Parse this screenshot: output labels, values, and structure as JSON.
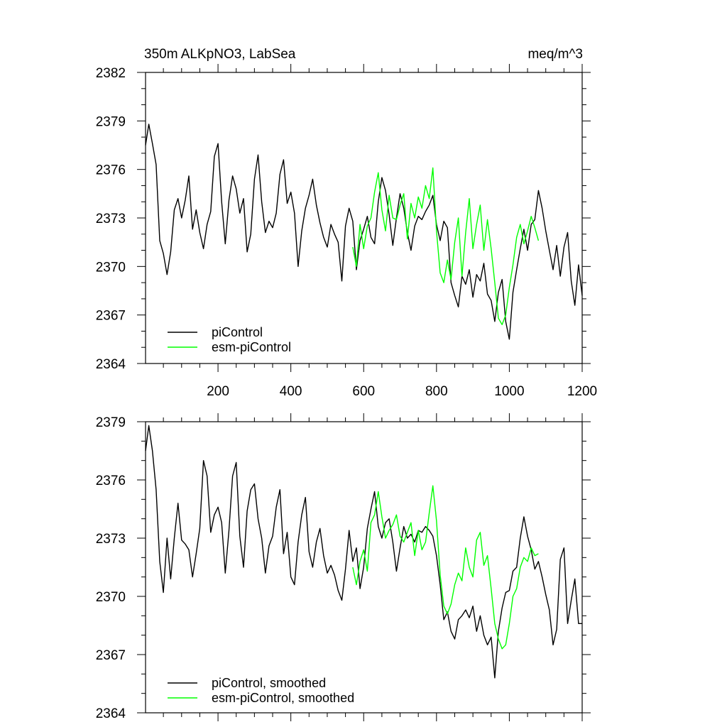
{
  "chart_data": [
    {
      "type": "line",
      "panel": "top",
      "title_left": "350m ALKpNO3, LabSea",
      "title_right": "meq/m^3",
      "xlabel": "",
      "ylabel": "",
      "xlim": [
        1,
        1200
      ],
      "ylim": [
        2364,
        2382
      ],
      "xticks": [
        200,
        400,
        600,
        800,
        1000,
        1200
      ],
      "yticks": [
        2364,
        2367,
        2370,
        2373,
        2376,
        2379,
        2382
      ],
      "legend_position": "bottom-left",
      "series": [
        {
          "name": "piControl",
          "color": "#000000",
          "x": [
            1,
            10,
            20,
            30,
            40,
            50,
            60,
            70,
            80,
            90,
            100,
            110,
            120,
            130,
            140,
            150,
            160,
            170,
            180,
            190,
            200,
            210,
            220,
            230,
            240,
            250,
            260,
            270,
            280,
            290,
            300,
            310,
            320,
            330,
            340,
            350,
            360,
            370,
            380,
            390,
            400,
            410,
            420,
            430,
            440,
            450,
            460,
            470,
            480,
            490,
            500,
            510,
            520,
            530,
            540,
            550,
            560,
            570,
            580,
            590,
            600,
            610,
            620,
            630,
            640,
            650,
            660,
            670,
            680,
            690,
            700,
            710,
            720,
            730,
            740,
            750,
            760,
            770,
            780,
            790,
            800,
            810,
            820,
            830,
            840,
            850,
            860,
            870,
            880,
            890,
            900,
            910,
            920,
            930,
            940,
            950,
            960,
            970,
            980,
            990,
            1000,
            1010,
            1020,
            1030,
            1040,
            1050,
            1060,
            1070,
            1080,
            1090,
            1100,
            1110,
            1120,
            1130,
            1140,
            1150,
            1160,
            1170,
            1180,
            1190,
            1200
          ],
          "values": [
            2377.5,
            2378.8,
            2377.6,
            2376.3,
            2371.6,
            2370.8,
            2369.5,
            2370.9,
            2373.5,
            2374.2,
            2373.0,
            2374.1,
            2375.6,
            2372.3,
            2373.5,
            2372.1,
            2371.1,
            2372.6,
            2373.4,
            2376.8,
            2377.6,
            2374.0,
            2371.4,
            2374.1,
            2375.6,
            2374.8,
            2373.3,
            2374.2,
            2370.9,
            2372.0,
            2375.4,
            2376.9,
            2374.0,
            2372.1,
            2372.8,
            2372.4,
            2373.3,
            2375.7,
            2376.6,
            2373.9,
            2374.6,
            2373.3,
            2370.0,
            2372.2,
            2373.6,
            2374.4,
            2375.4,
            2373.8,
            2372.7,
            2371.8,
            2371.2,
            2372.6,
            2372.0,
            2371.5,
            2369.1,
            2372.5,
            2373.6,
            2372.8,
            2369.8,
            2371.6,
            2372.3,
            2373.1,
            2371.8,
            2371.4,
            2374.0,
            2375.5,
            2374.7,
            2373.2,
            2371.3,
            2373.0,
            2374.5,
            2373.6,
            2372.1,
            2371.0,
            2372.5,
            2373.1,
            2372.9,
            2373.4,
            2373.8,
            2374.4,
            2372.6,
            2371.6,
            2372.8,
            2372.4,
            2369.0,
            2368.2,
            2367.5,
            2369.4,
            2368.9,
            2369.8,
            2368.1,
            2369.5,
            2369.1,
            2370.2,
            2368.3,
            2367.9,
            2366.6,
            2368.4,
            2369.2,
            2366.6,
            2365.5,
            2368.4,
            2369.8,
            2371.1,
            2372.3,
            2371.0,
            2372.6,
            2372.9,
            2374.7,
            2373.6,
            2372.2,
            2371.0,
            2369.8,
            2371.3,
            2369.4,
            2371.2,
            2372.1,
            2369.1,
            2367.6,
            2370.1,
            2368.2
          ]
        },
        {
          "name": "esm-piControl",
          "color": "#00ff00",
          "x": [
            570,
            580,
            590,
            600,
            610,
            620,
            630,
            640,
            650,
            660,
            670,
            680,
            690,
            700,
            710,
            720,
            730,
            740,
            750,
            760,
            770,
            780,
            790,
            800,
            810,
            820,
            830,
            840,
            850,
            860,
            870,
            880,
            890,
            900,
            910,
            920,
            930,
            940,
            950,
            960,
            970,
            980,
            990,
            1000,
            1010,
            1020,
            1030,
            1040,
            1050,
            1060,
            1070,
            1080
          ],
          "values": [
            2371.2,
            2370.0,
            2372.6,
            2371.1,
            2372.5,
            2373.0,
            2374.6,
            2375.8,
            2373.5,
            2372.2,
            2374.4,
            2373.0,
            2372.9,
            2373.8,
            2374.5,
            2371.7,
            2373.9,
            2373.0,
            2374.3,
            2373.6,
            2375.0,
            2374.2,
            2376.1,
            2372.2,
            2369.6,
            2369.0,
            2370.4,
            2369.2,
            2371.5,
            2373.0,
            2369.4,
            2372.1,
            2374.2,
            2371.1,
            2372.6,
            2373.8,
            2371.0,
            2372.9,
            2371.1,
            2369.0,
            2366.8,
            2366.4,
            2367.0,
            2368.7,
            2370.1,
            2371.8,
            2372.6,
            2371.4,
            2372.2,
            2373.1,
            2372.4,
            2371.6
          ]
        }
      ]
    },
    {
      "type": "line",
      "panel": "bottom",
      "title_left": "",
      "title_right": "",
      "xlabel": "",
      "ylabel": "",
      "xlim": [
        1,
        1200
      ],
      "ylim": [
        2364,
        2379
      ],
      "xticks": [
        200,
        400,
        600,
        800,
        1000,
        1200
      ],
      "yticks": [
        2364,
        2367,
        2370,
        2373,
        2376,
        2379
      ],
      "legend_position": "bottom-left",
      "series": [
        {
          "name": "piControl, smoothed",
          "color": "#000000",
          "x": [
            1,
            10,
            20,
            30,
            40,
            50,
            60,
            70,
            80,
            90,
            100,
            110,
            120,
            130,
            140,
            150,
            160,
            170,
            180,
            190,
            200,
            210,
            220,
            230,
            240,
            250,
            260,
            270,
            280,
            290,
            300,
            310,
            320,
            330,
            340,
            350,
            360,
            370,
            380,
            390,
            400,
            410,
            420,
            430,
            440,
            450,
            460,
            470,
            480,
            490,
            500,
            510,
            520,
            530,
            540,
            550,
            560,
            570,
            580,
            590,
            600,
            610,
            620,
            630,
            640,
            650,
            660,
            670,
            680,
            690,
            700,
            710,
            720,
            730,
            740,
            750,
            760,
            770,
            780,
            790,
            800,
            810,
            820,
            830,
            840,
            850,
            860,
            870,
            880,
            890,
            900,
            910,
            920,
            930,
            940,
            950,
            960,
            970,
            980,
            990,
            1000,
            1010,
            1020,
            1030,
            1040,
            1050,
            1060,
            1070,
            1080,
            1090,
            1100,
            1110,
            1120,
            1130,
            1140,
            1150,
            1160,
            1170,
            1180,
            1190,
            1200
          ],
          "values": [
            2377.5,
            2378.8,
            2377.5,
            2375.5,
            2371.8,
            2370.2,
            2373.0,
            2370.9,
            2373.0,
            2374.8,
            2372.9,
            2372.7,
            2372.4,
            2371.0,
            2372.2,
            2373.5,
            2377.0,
            2376.2,
            2373.3,
            2374.2,
            2374.6,
            2373.8,
            2371.2,
            2373.4,
            2376.2,
            2376.9,
            2373.1,
            2371.5,
            2374.4,
            2375.5,
            2375.8,
            2374.0,
            2373.0,
            2371.2,
            2372.6,
            2373.1,
            2374.6,
            2375.5,
            2372.2,
            2373.3,
            2371.0,
            2370.6,
            2372.8,
            2374.2,
            2375.1,
            2372.3,
            2371.5,
            2372.8,
            2373.5,
            2372.1,
            2371.2,
            2371.6,
            2371.1,
            2370.3,
            2369.8,
            2371.4,
            2373.4,
            2371.8,
            2372.5,
            2370.4,
            2371.5,
            2373.5,
            2374.5,
            2375.4,
            2373.6,
            2373.0,
            2373.8,
            2374.0,
            2372.8,
            2371.3,
            2372.5,
            2373.6,
            2373.0,
            2373.2,
            2372.8,
            2373.4,
            2373.3,
            2373.6,
            2373.4,
            2373.1,
            2372.1,
            2370.6,
            2368.8,
            2369.2,
            2368.2,
            2367.8,
            2368.8,
            2369.0,
            2369.3,
            2368.9,
            2369.5,
            2368.2,
            2369.0,
            2368.0,
            2367.5,
            2367.9,
            2365.8,
            2368.2,
            2369.4,
            2370.2,
            2370.3,
            2371.3,
            2371.5,
            2373.0,
            2374.1,
            2373.1,
            2372.4,
            2371.4,
            2371.8,
            2371.0,
            2370.1,
            2369.3,
            2367.5,
            2368.3,
            2371.9,
            2372.5,
            2368.6,
            2369.8,
            2370.9,
            2368.6,
            2368.6
          ]
        },
        {
          "name": "esm-piControl, smoothed",
          "color": "#00ff00",
          "x": [
            570,
            580,
            590,
            600,
            610,
            620,
            630,
            640,
            650,
            660,
            670,
            680,
            690,
            700,
            710,
            720,
            730,
            740,
            750,
            760,
            770,
            780,
            790,
            800,
            810,
            820,
            830,
            840,
            850,
            860,
            870,
            880,
            890,
            900,
            910,
            920,
            930,
            940,
            950,
            960,
            970,
            980,
            990,
            1000,
            1010,
            1020,
            1030,
            1040,
            1050,
            1060,
            1070,
            1080
          ],
          "values": [
            2371.5,
            2370.6,
            2371.8,
            2372.4,
            2371.3,
            2373.8,
            2374.2,
            2375.4,
            2374.1,
            2373.0,
            2373.4,
            2373.7,
            2374.2,
            2373.1,
            2372.8,
            2373.3,
            2373.8,
            2372.1,
            2373.4,
            2372.4,
            2372.8,
            2374.3,
            2375.7,
            2373.9,
            2371.1,
            2369.5,
            2369.1,
            2369.6,
            2370.6,
            2371.2,
            2370.8,
            2372.5,
            2371.5,
            2371.0,
            2372.9,
            2373.3,
            2371.6,
            2372.1,
            2370.4,
            2368.6,
            2367.8,
            2367.3,
            2367.5,
            2368.6,
            2370.0,
            2370.4,
            2371.5,
            2372.0,
            2371.8,
            2372.5,
            2372.1,
            2372.2
          ]
        }
      ]
    }
  ]
}
